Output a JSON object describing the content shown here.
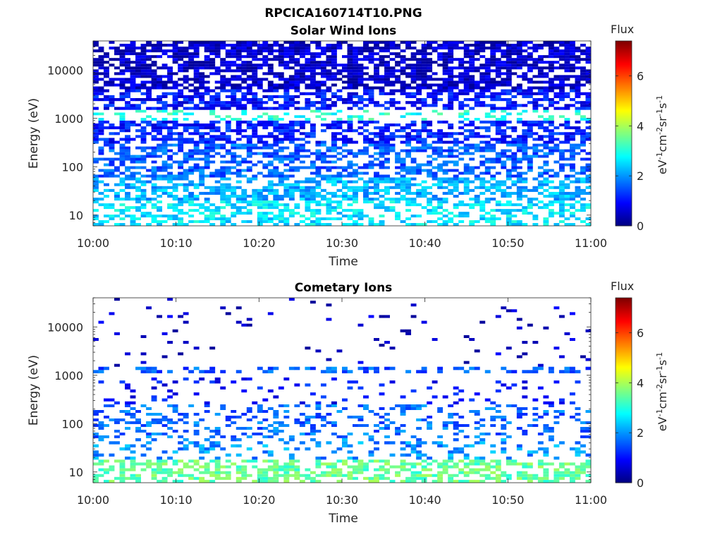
{
  "figure_title": "RPCICA160714T10.PNG",
  "chart_data": [
    {
      "type": "heatmap",
      "title": "Solar Wind Ions",
      "xlabel": "Time",
      "ylabel": "Energy (eV)",
      "x_ticks": [
        "10:00",
        "10:10",
        "10:20",
        "10:30",
        "10:40",
        "10:50",
        "11:00"
      ],
      "xlim": [
        "10:00",
        "11:00"
      ],
      "y_scale": "log",
      "y_ticks": [
        10,
        100,
        1000,
        10000
      ],
      "y_tick_labels": [
        "10",
        "100",
        "1000",
        "10000"
      ],
      "ylim": [
        6,
        40000
      ],
      "colorbar": {
        "label": "Flux",
        "unit_base": "eV",
        "unit_parts": [
          "-1",
          "cm",
          "-2",
          "sr",
          "-1",
          "s",
          "-1"
        ],
        "ticks": [
          "0",
          "2",
          "4",
          "6"
        ],
        "range": [
          0,
          7.4
        ],
        "colormap": "jet"
      },
      "bands": [
        {
          "energy_range": [
            6,
            20
          ],
          "flux": 2.6,
          "fill_fraction": 0.5,
          "seed": 11
        },
        {
          "energy_range": [
            20,
            60
          ],
          "flux": 2.2,
          "fill_fraction": 0.6,
          "seed": 23
        },
        {
          "energy_range": [
            60,
            300
          ],
          "flux": 1.6,
          "fill_fraction": 0.55,
          "seed": 37
        },
        {
          "energy_range": [
            300,
            900
          ],
          "flux": 1.1,
          "fill_fraction": 0.6,
          "seed": 41
        },
        {
          "energy_range": [
            900,
            1500
          ],
          "flux": 3.0,
          "fill_fraction": 0.25,
          "seed": 53
        },
        {
          "energy_range": [
            1500,
            4000
          ],
          "flux": 1.0,
          "fill_fraction": 0.6,
          "seed": 67
        },
        {
          "energy_range": [
            4000,
            40000
          ],
          "flux": 0.5,
          "fill_fraction": 0.7,
          "seed": 71
        }
      ]
    },
    {
      "type": "heatmap",
      "title": "Cometary Ions",
      "xlabel": "Time",
      "ylabel": "Energy (eV)",
      "x_ticks": [
        "10:00",
        "10:10",
        "10:20",
        "10:30",
        "10:40",
        "10:50",
        "11:00"
      ],
      "xlim": [
        "10:00",
        "11:00"
      ],
      "y_scale": "log",
      "y_ticks": [
        10,
        100,
        1000,
        10000
      ],
      "y_tick_labels": [
        "10",
        "100",
        "1000",
        "10000"
      ],
      "ylim": [
        6,
        40000
      ],
      "colorbar": {
        "label": "Flux",
        "unit_base": "eV",
        "unit_parts": [
          "-1",
          "cm",
          "-2",
          "sr",
          "-1",
          "s",
          "-1"
        ],
        "ticks": [
          "0",
          "2",
          "4",
          "6"
        ],
        "range": [
          0,
          7.4
        ],
        "colormap": "jet"
      },
      "bands": [
        {
          "energy_range": [
            6,
            18
          ],
          "flux": 3.5,
          "fill_fraction": 0.55,
          "seed": 13
        },
        {
          "energy_range": [
            18,
            50
          ],
          "flux": 2.0,
          "fill_fraction": 0.25,
          "seed": 29
        },
        {
          "energy_range": [
            50,
            250
          ],
          "flux": 1.7,
          "fill_fraction": 0.3,
          "seed": 31
        },
        {
          "energy_range": [
            250,
            900
          ],
          "flux": 1.0,
          "fill_fraction": 0.12,
          "seed": 43
        },
        {
          "energy_range": [
            1100,
            1500
          ],
          "flux": 1.6,
          "fill_fraction": 0.35,
          "seed": 59
        },
        {
          "energy_range": [
            1500,
            40000
          ],
          "flux": 0.5,
          "fill_fraction": 0.04,
          "seed": 61
        }
      ]
    }
  ]
}
